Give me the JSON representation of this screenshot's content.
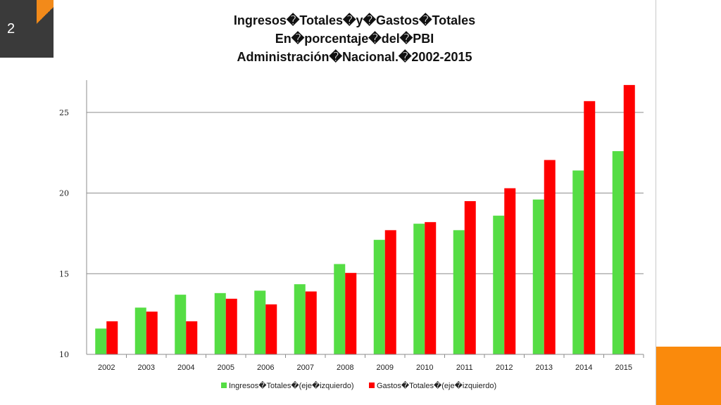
{
  "slide": {
    "number": "2"
  },
  "chart_data": {
    "type": "bar",
    "title_lines": [
      "Ingresos�Totales�y�Gastos�Totales",
      "En�porcentaje�del�PBI",
      "Administración�Nacional.�2002-2015"
    ],
    "categories": [
      "2002",
      "2003",
      "2004",
      "2005",
      "2006",
      "2007",
      "2008",
      "2009",
      "2010",
      "2011",
      "2012",
      "2013",
      "2014",
      "2015"
    ],
    "series": [
      {
        "name": "Ingresos�Totales�(eje�izquierdo)",
        "color": "#55dd44",
        "values": [
          11.6,
          12.9,
          13.7,
          13.8,
          13.95,
          14.35,
          15.6,
          17.1,
          18.1,
          17.7,
          18.6,
          19.6,
          21.4,
          22.6
        ]
      },
      {
        "name": "Gastos�Totales�(eje�izquierdo)",
        "color": "#ff0000",
        "values": [
          12.05,
          12.65,
          12.05,
          13.45,
          13.1,
          13.9,
          15.05,
          17.7,
          18.2,
          19.5,
          20.3,
          22.05,
          25.7,
          26.7
        ]
      }
    ],
    "yticks": [
      "10",
      "15",
      "20",
      "25"
    ],
    "ylim": [
      10,
      27
    ],
    "grid": true,
    "legend": "bottom"
  }
}
